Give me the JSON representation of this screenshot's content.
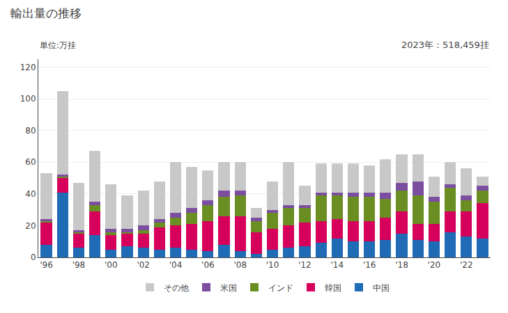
{
  "chart_data": {
    "type": "bar",
    "title": "輸出量の推移",
    "subtitle": "単位:万挂",
    "annotation": "2023年：518,459挂",
    "categories": [
      "'96",
      null,
      "'98",
      null,
      "'00",
      null,
      "'02",
      null,
      "'04",
      null,
      "'06",
      null,
      "'08",
      null,
      "'10",
      null,
      "'12",
      null,
      "'14",
      null,
      "'16",
      null,
      "'18",
      null,
      "'20",
      null,
      "'22",
      null
    ],
    "series": [
      {
        "name": "中国",
        "color": "#1f6bb5",
        "values": [
          8,
          41,
          6,
          14,
          5,
          7,
          6,
          5,
          6,
          5,
          4,
          8,
          4,
          2,
          5,
          6,
          7,
          9,
          12,
          10,
          10,
          11,
          15,
          11,
          10,
          16,
          13,
          12
        ]
      },
      {
        "name": "韓国",
        "color": "#d6005c",
        "values": [
          14,
          9,
          9,
          15,
          9,
          8,
          9,
          14,
          14,
          16,
          19,
          18,
          22,
          14,
          13,
          14,
          15,
          14,
          12,
          13,
          13,
          14,
          14,
          10,
          11,
          13,
          16,
          22
        ]
      },
      {
        "name": "インド",
        "color": "#6b8e23",
        "values": [
          1,
          1,
          1,
          4,
          2,
          1,
          2,
          3,
          5,
          7,
          10,
          12,
          13,
          7,
          10,
          11,
          9,
          16,
          15,
          15,
          15,
          12,
          13,
          18,
          14,
          15,
          7,
          8
        ]
      },
      {
        "name": "米国",
        "color": "#7b4ea0",
        "values": [
          1,
          1,
          1,
          2,
          2,
          2,
          3,
          2,
          3,
          3,
          3,
          4,
          3,
          2,
          2,
          2,
          2,
          2,
          2,
          3,
          3,
          4,
          5,
          9,
          3,
          2,
          3,
          3
        ]
      },
      {
        "name": "その他",
        "color": "#c8c8c8",
        "values": [
          29,
          53,
          30,
          32,
          28,
          21,
          22,
          24,
          32,
          26,
          19,
          18,
          18,
          6,
          18,
          27,
          12,
          18,
          18,
          18,
          17,
          21,
          18,
          17,
          13,
          14,
          17,
          6
        ]
      }
    ],
    "ylim": [
      0,
      125
    ],
    "yticks": [
      0,
      20,
      40,
      60,
      80,
      100,
      120
    ],
    "grid": true,
    "stacked": true,
    "legend": "bottom"
  }
}
